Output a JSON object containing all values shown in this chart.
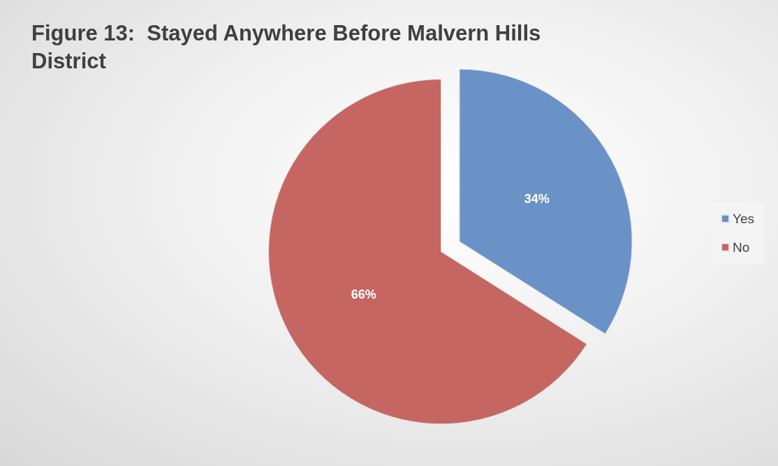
{
  "chart_data": {
    "type": "pie",
    "title": "Figure 13:  Stayed Anywhere Before Malvern Hills District",
    "categories": [
      "Yes",
      "No"
    ],
    "values": [
      34,
      66
    ],
    "colors": [
      "#6a92c6",
      "#c66662"
    ],
    "value_labels": [
      "34%",
      "66%"
    ],
    "legend": "right"
  }
}
